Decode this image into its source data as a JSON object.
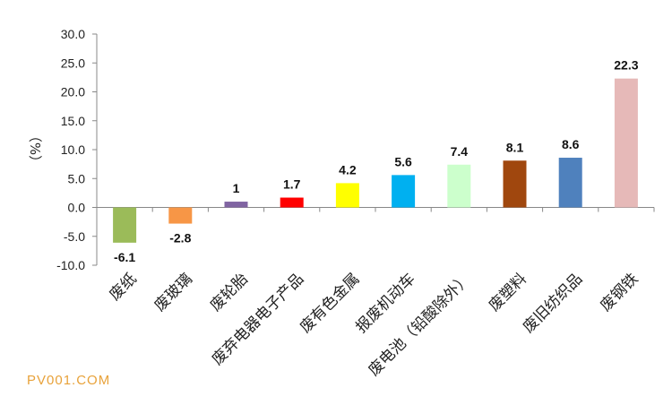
{
  "chart_data": {
    "type": "bar",
    "categories": [
      "废纸",
      "废玻璃",
      "废轮胎",
      "废弃电器电子产品",
      "废有色金属",
      "报废机动车",
      "废电池（铅酸除外）",
      "废塑料",
      "废旧纺织品",
      "废钢铁"
    ],
    "values": [
      -6.1,
      -2.8,
      1,
      1.7,
      4.2,
      5.6,
      7.4,
      8.1,
      8.6,
      22.3
    ],
    "value_labels": [
      "-6.1",
      "-2.8",
      "1",
      "1.7",
      "4.2",
      "5.6",
      "7.4",
      "8.1",
      "8.6",
      "22.3"
    ],
    "colors": [
      "#9bbb59",
      "#f79646",
      "#8064a2",
      "#ff0000",
      "#ffff00",
      "#00b0f0",
      "#ccffcc",
      "#a0470e",
      "#4f81bd",
      "#e6b9b8"
    ],
    "ylabel": "（%）",
    "ylim": [
      -10,
      30
    ],
    "yticks": [
      "30.0",
      "25.0",
      "20.0",
      "15.0",
      "10.0",
      "5.0",
      "0.0",
      "-5.0",
      "-10.0"
    ],
    "grid": false,
    "legend": "none"
  },
  "watermark": "PV001.COM"
}
